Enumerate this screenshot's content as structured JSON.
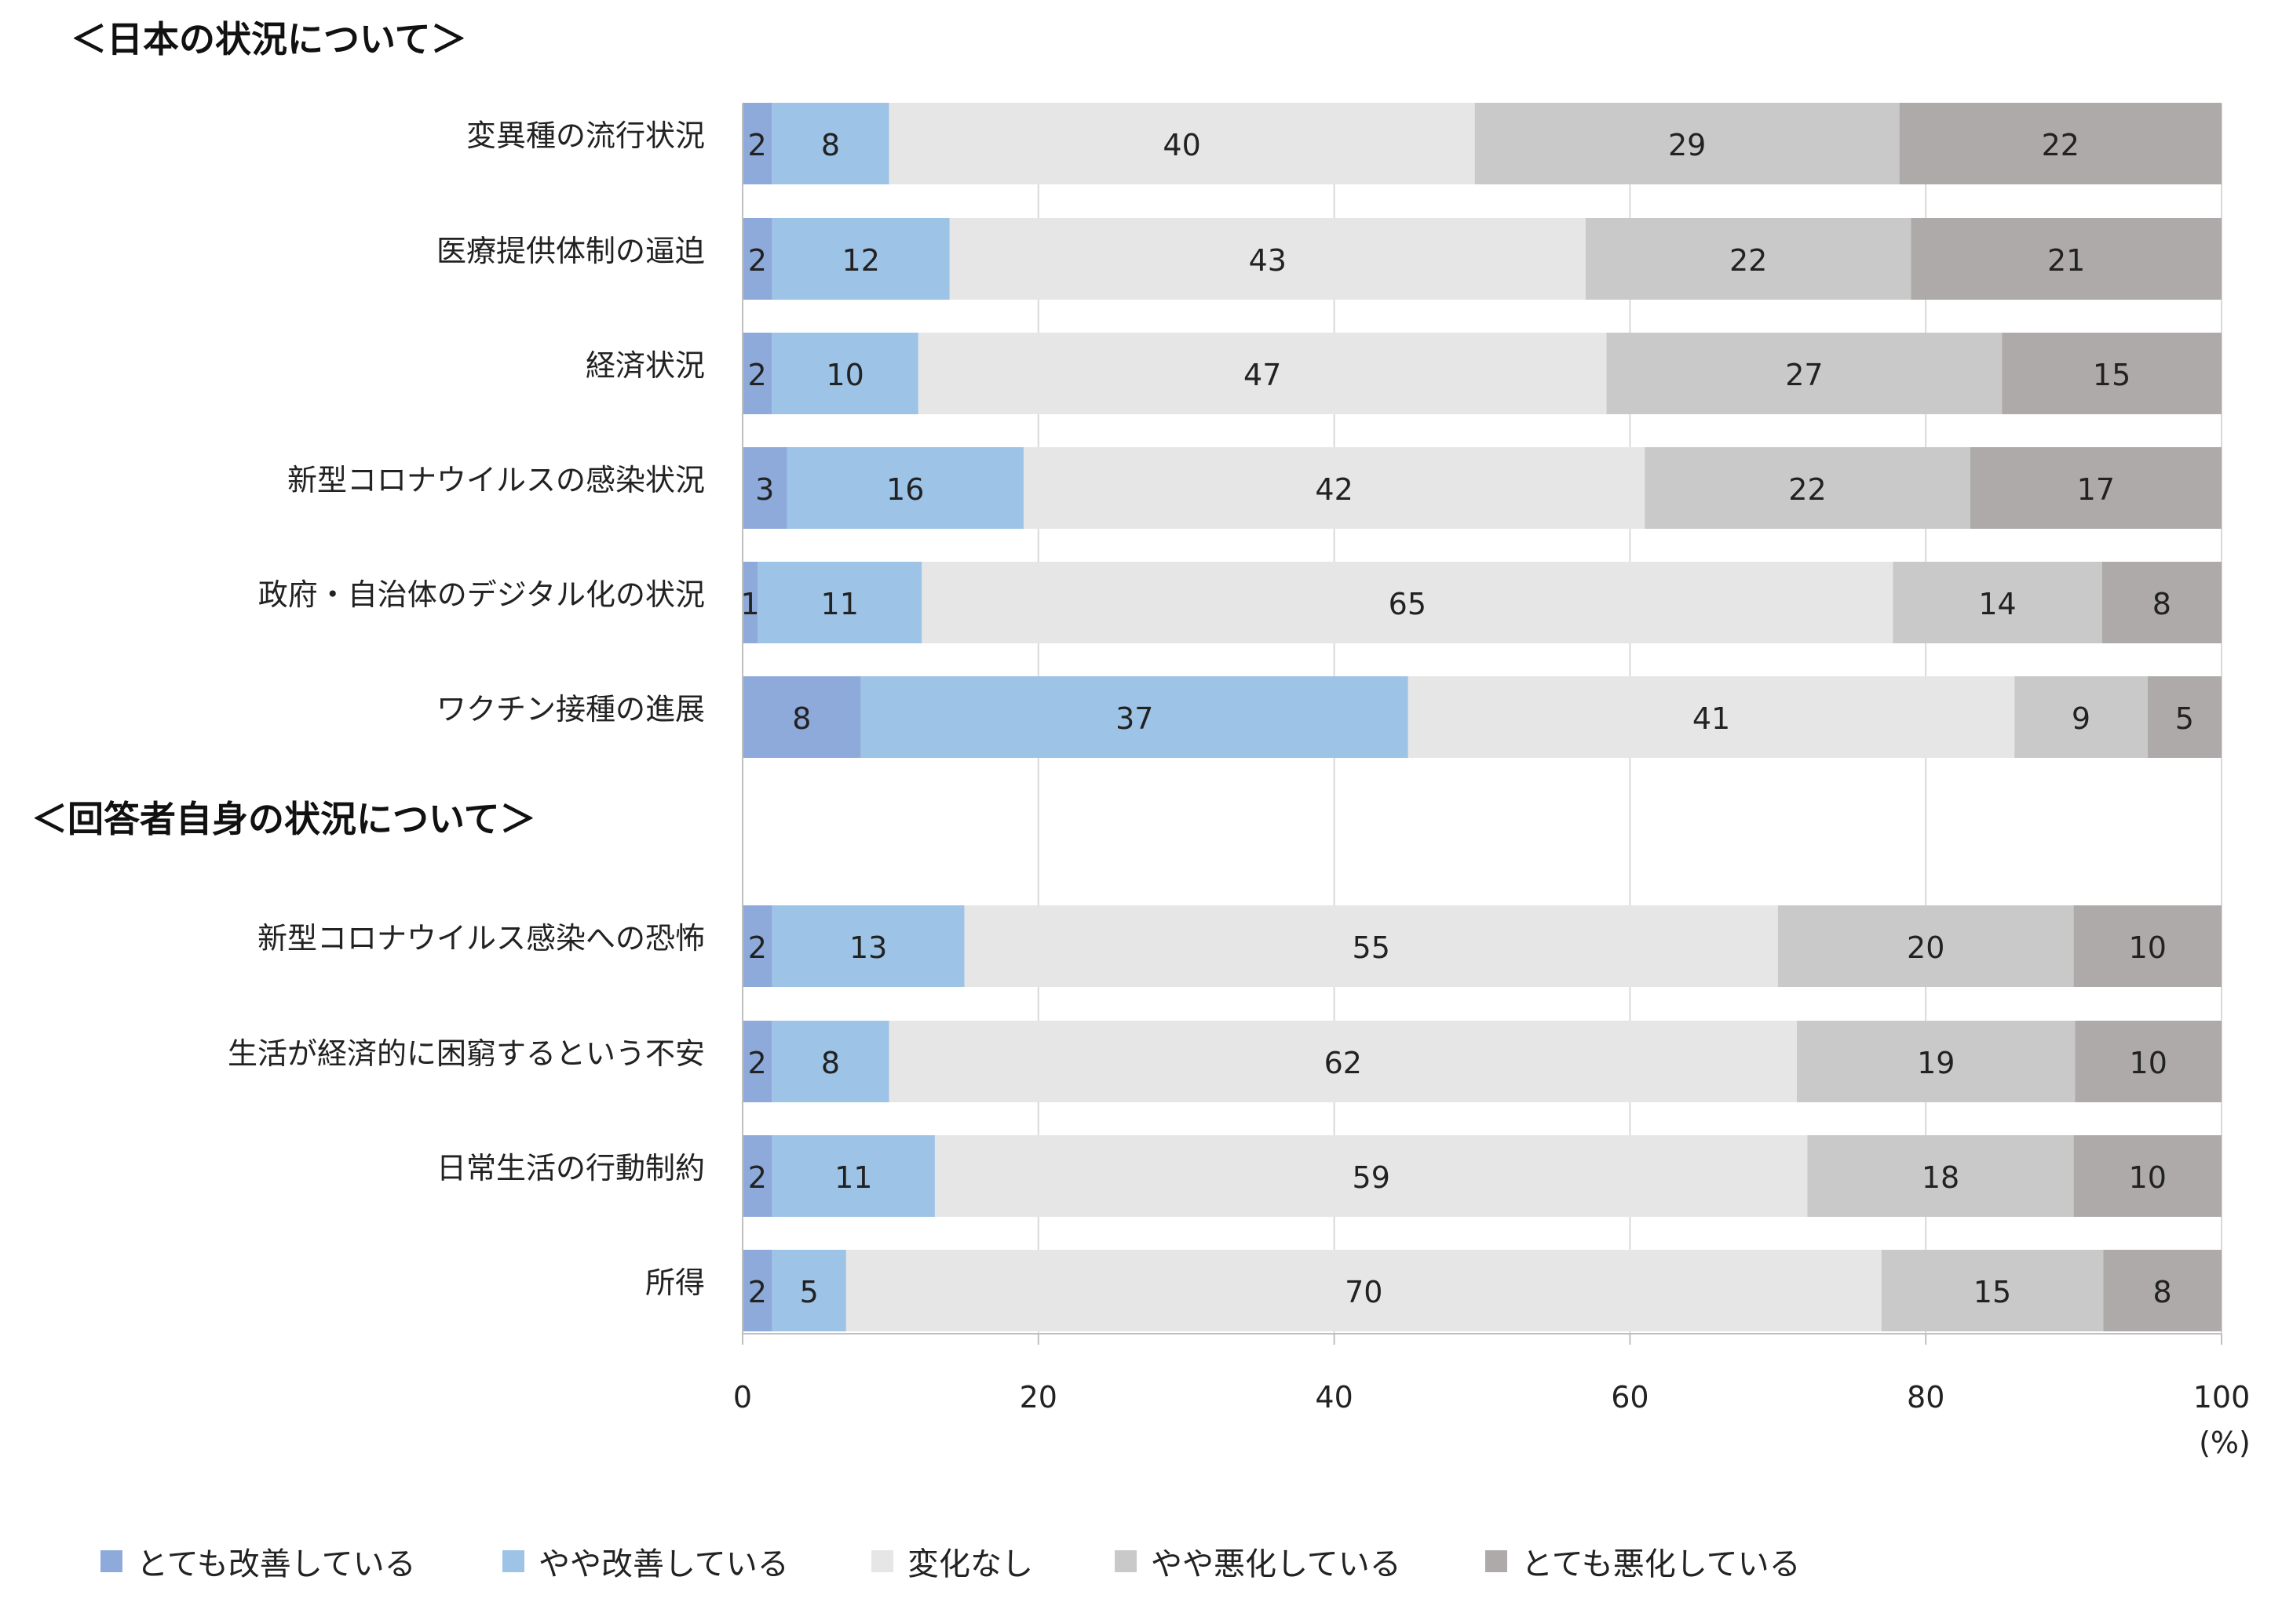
{
  "chart_data": {
    "type": "bar",
    "orientation": "horizontal-stacked-100",
    "sections": [
      {
        "title": "＜日本の状況について＞",
        "categories": [
          "変異種の流行状況",
          "医療提供体制の逼迫",
          "経済状況",
          "新型コロナウイルスの感染状況",
          "政府・自治体のデジタル化の状況",
          "ワクチン接種の進展"
        ],
        "values": [
          [
            2,
            8,
            40,
            29,
            22
          ],
          [
            2,
            12,
            43,
            22,
            21
          ],
          [
            2,
            10,
            47,
            27,
            15
          ],
          [
            3,
            16,
            42,
            22,
            17
          ],
          [
            1,
            11,
            65,
            14,
            8
          ],
          [
            8,
            37,
            41,
            9,
            5
          ]
        ]
      },
      {
        "title": "＜回答者自身の状況について＞",
        "categories": [
          "新型コロナウイルス感染への恐怖",
          "生活が経済的に困窮するという不安",
          "日常生活の行動制約",
          "所得"
        ],
        "values": [
          [
            2,
            13,
            55,
            20,
            10
          ],
          [
            2,
            8,
            62,
            19,
            10
          ],
          [
            2,
            11,
            59,
            18,
            10
          ],
          [
            2,
            5,
            70,
            15,
            8
          ]
        ]
      }
    ],
    "series": [
      {
        "name": "とても改善している",
        "color": "#8eaadb"
      },
      {
        "name": "やや改善している",
        "color": "#9dc3e6"
      },
      {
        "name": "変化なし",
        "color": "#e7e6e6"
      },
      {
        "name": "やや悪化している",
        "color": "#c9c9c9"
      },
      {
        "name": "とても悪化している",
        "color": "#aeaaaa"
      }
    ],
    "xlim": [
      0,
      100
    ],
    "xticks": [
      0,
      20,
      40,
      60,
      80,
      100
    ],
    "xunit": "(%)",
    "grid": true,
    "legend_position": "bottom"
  }
}
